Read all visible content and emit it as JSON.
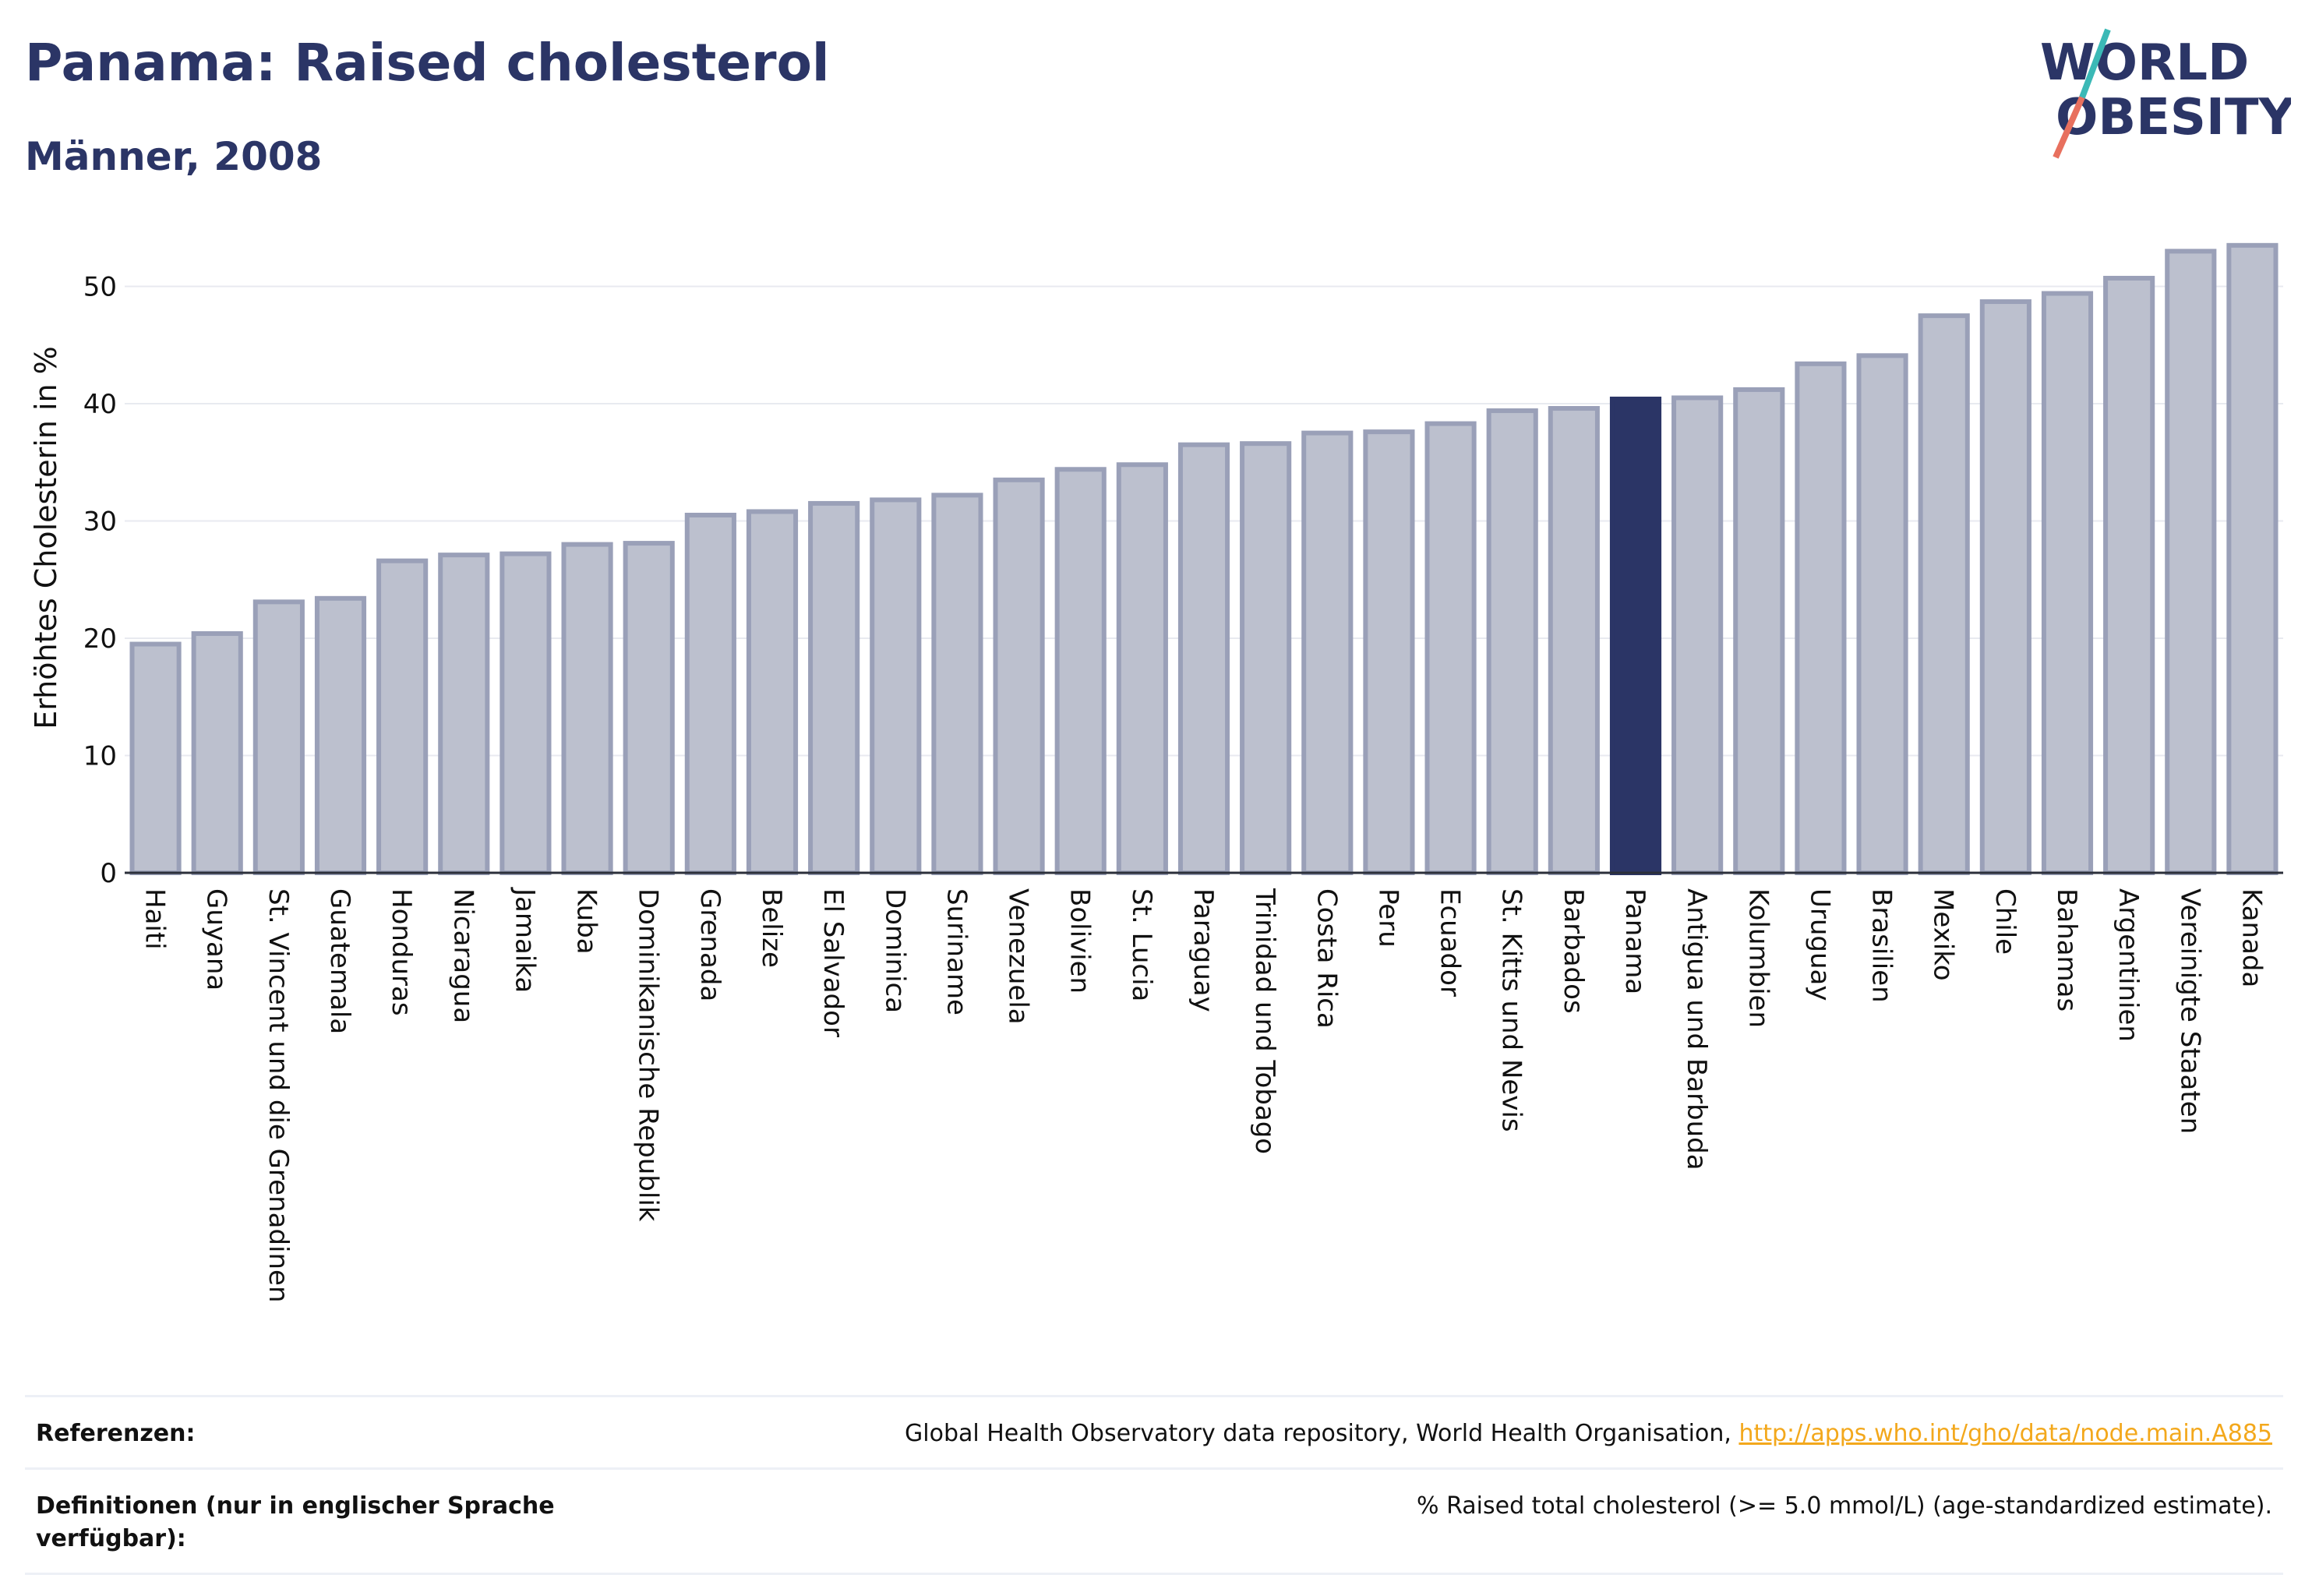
{
  "header": {
    "title": "Panama: Raised cholesterol",
    "subtitle": "Männer, 2008"
  },
  "logo": {
    "line1": "WORLD",
    "line2": "OBESITY",
    "accent_colors": [
      "#3bb9b6",
      "#e8705e"
    ]
  },
  "colors": {
    "bar_fill": "#bcc0ce",
    "bar_stroke": "#9aa0b8",
    "highlight": "#2b3566",
    "grid": "#e8eaf0",
    "link": "#f3a81c"
  },
  "chart_data": {
    "type": "bar",
    "title": "Panama: Raised cholesterol",
    "subtitle": "Männer, 2008",
    "ylabel": "Erhöhtes Cholesterin in %",
    "xlabel": "",
    "ylim": [
      0,
      55
    ],
    "yticks": [
      0,
      10,
      20,
      30,
      40,
      50
    ],
    "grid": true,
    "highlight": "Panama",
    "categories": [
      "Haiti",
      "Guyana",
      "St. Vincent und die Grenadinen",
      "Guatemala",
      "Honduras",
      "Nicaragua",
      "Jamaika",
      "Kuba",
      "Dominikanische Republik",
      "Grenada",
      "Belize",
      "El Salvador",
      "Dominica",
      "Suriname",
      "Venezuela",
      "Bolivien",
      "St. Lucia",
      "Paraguay",
      "Trinidad und Tobago",
      "Costa Rica",
      "Peru",
      "Ecuador",
      "St. Kitts und Nevis",
      "Barbados",
      "Panama",
      "Antigua und Barbuda",
      "Kolumbien",
      "Uruguay",
      "Brasilien",
      "Mexiko",
      "Chile",
      "Bahamas",
      "Argentinien",
      "Vereinigte Staaten",
      "Kanada"
    ],
    "values": [
      19.5,
      20.4,
      23.1,
      23.4,
      26.6,
      27.1,
      27.2,
      28.0,
      28.1,
      30.5,
      30.8,
      31.5,
      31.8,
      32.2,
      33.5,
      34.4,
      34.8,
      36.5,
      36.6,
      37.5,
      37.6,
      38.3,
      39.4,
      39.6,
      40.4,
      40.5,
      41.2,
      43.4,
      44.1,
      47.5,
      48.7,
      49.4,
      50.7,
      53.0,
      53.5
    ]
  },
  "references": {
    "label": "Referenzen:",
    "text": "Global Health Observatory data repository, World Health Organisation, ",
    "link": "http://apps.who.int/gho/data/node.main.A885"
  },
  "definitions": {
    "label": "Definitionen (nur in englischer Sprache verfügbar):",
    "text": "% Raised total cholesterol (>= 5.0 mmol/L) (age-standardized estimate)."
  }
}
